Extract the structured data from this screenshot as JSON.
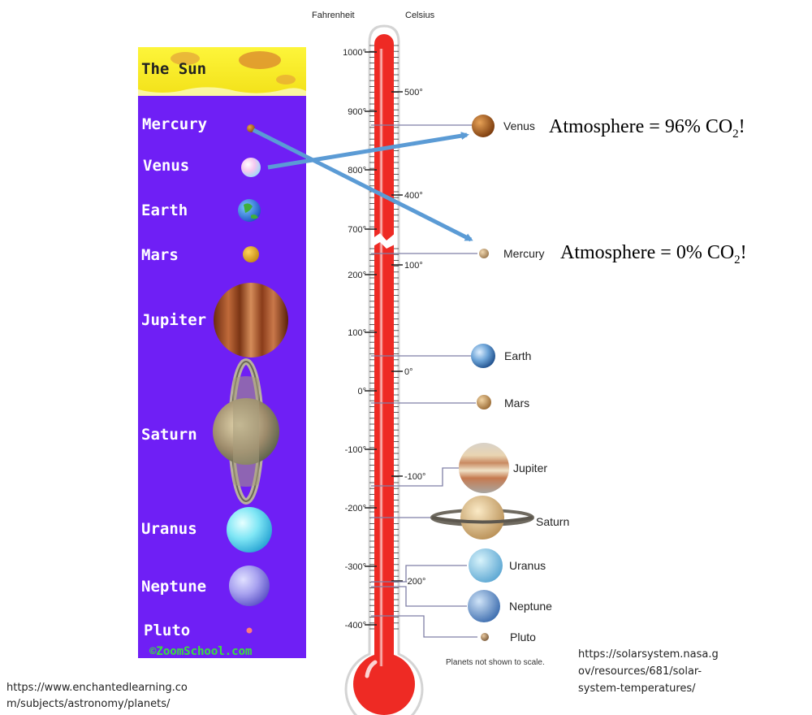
{
  "left_panel": {
    "sun_label": "The Sun",
    "planets": [
      "Mercury",
      "Venus",
      "Earth",
      "Mars",
      "Jupiter",
      "Saturn",
      "Uranus",
      "Neptune",
      "Pluto"
    ],
    "copyright": "©ZoomSchool.com",
    "colors": {
      "background": "#6f1ff5",
      "sun": "#fdf02a"
    }
  },
  "thermometer": {
    "fahrenheit_label": "Fahrenheit",
    "celsius_label": "Celsius",
    "fahrenheit_ticks": [
      "1000°",
      "900°",
      "800°",
      "700°",
      "200°",
      "100°",
      "0°",
      "-100°",
      "-200°",
      "-300°",
      "-400°"
    ],
    "celsius_ticks": [
      "500°",
      "400°",
      "100°",
      "0°",
      "-100°",
      "-200°"
    ],
    "planets": [
      "Venus",
      "Mercury",
      "Earth",
      "Mars",
      "Jupiter",
      "Saturn",
      "Uranus",
      "Neptune",
      "Pluto"
    ],
    "note": "Planets not shown to scale.",
    "colors": {
      "mercury_fill": "#ee2a24",
      "tube_outline": "#e0e0e0"
    }
  },
  "annotations": {
    "venus": {
      "prefix": "Atmosphere = 96% CO",
      "sub": "2",
      "suffix": "!"
    },
    "mercury": {
      "prefix": "Atmosphere = 0% CO",
      "sub": "2",
      "suffix": "!"
    }
  },
  "arrow_color": "#5b9bd5",
  "sources": {
    "left": [
      "https://www.enchantedlearning.co",
      "m/subjects/astronomy/planets/"
    ],
    "right": [
      "https://solarsystem.nasa.g",
      "ov/resources/681/solar-",
      "system-temperatures/"
    ]
  }
}
